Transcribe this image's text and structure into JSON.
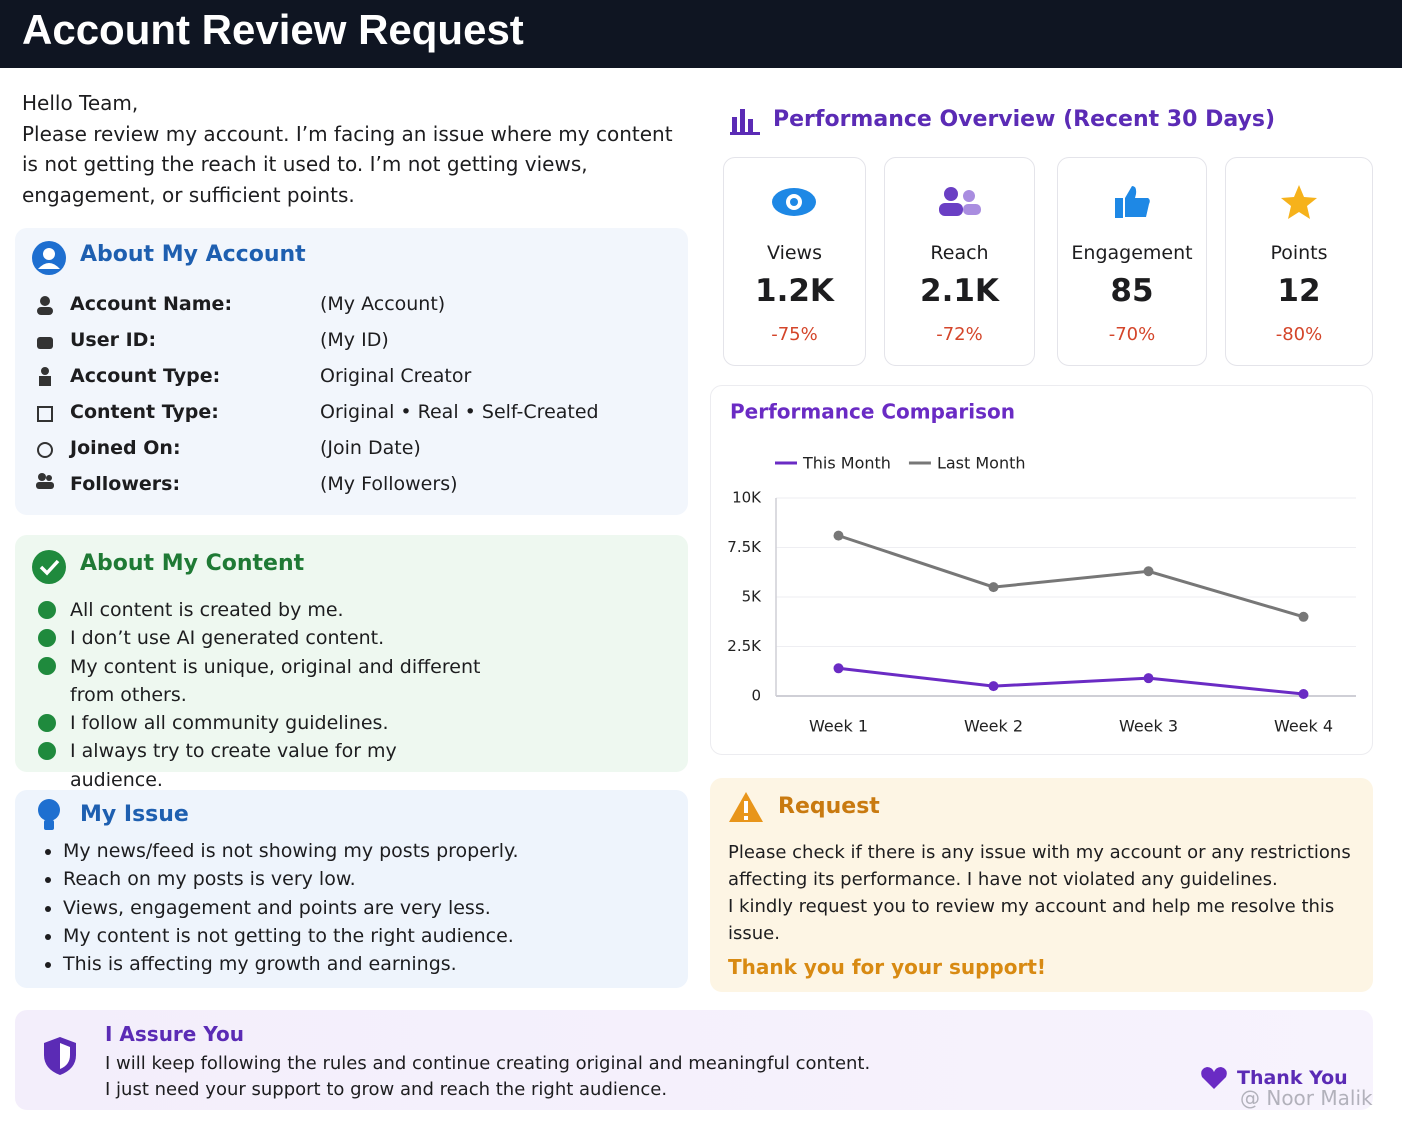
{
  "header": {
    "title": "Account Review Request"
  },
  "intro": {
    "greeting": "Hello Team,",
    "body": "Please review my account. I’m facing an issue where my content is not getting the reach it used to. I’m not getting views, engagement, or sufficient points."
  },
  "account": {
    "title": "About My Account",
    "rows": [
      {
        "label": "Account Name:",
        "value": "(My Account)"
      },
      {
        "label": "User ID:",
        "value": "(My ID)"
      },
      {
        "label": "Account Type:",
        "value": "Original Creator"
      },
      {
        "label": "Content Type:",
        "value": "Original • Real • Self-Created"
      },
      {
        "label": "Joined On:",
        "value": "(Join Date)"
      },
      {
        "label": "Followers:",
        "value": "(My Followers)"
      }
    ]
  },
  "content": {
    "title": "About My Content",
    "items": [
      "All content is created by me.",
      "I don’t use AI generated content.",
      "My content is unique, original and different from others.",
      "I follow all community guidelines.",
      "I always try to create value for my audience."
    ]
  },
  "issue": {
    "title": "My Issue",
    "items": [
      "My news/feed is not showing my posts properly.",
      "Reach on my posts is very low.",
      "Views, engagement and points are very less.",
      "My content is not getting to the right audience.",
      "This is affecting my growth and earnings."
    ]
  },
  "performance": {
    "title": "Performance Overview (Recent 30 Days)",
    "metrics": [
      {
        "label": "Views",
        "value": "1.2K",
        "change": "-75%"
      },
      {
        "label": "Reach",
        "value": "2.1K",
        "change": "-72%"
      },
      {
        "label": "Engagement",
        "value": "85",
        "change": "-70%"
      },
      {
        "label": "Points",
        "value": "12",
        "change": "-80%"
      }
    ]
  },
  "chart_data": {
    "type": "line",
    "title": "Performance Comparison",
    "categories": [
      "Week 1",
      "Week 2",
      "Week 3",
      "Week 4"
    ],
    "series": [
      {
        "name": "This Month",
        "color": "#6a2bc4",
        "values": [
          1400,
          500,
          900,
          100
        ]
      },
      {
        "name": "Last Month",
        "color": "#777777",
        "values": [
          8100,
          5500,
          6300,
          4000
        ]
      }
    ],
    "ylim": [
      0,
      10000
    ],
    "yticks": [
      0,
      {
        "value": 2500,
        "label": "2.5K"
      },
      {
        "value": 5000,
        "label": "5K"
      },
      {
        "value": 7500,
        "label": "7.5K"
      },
      {
        "value": 10000,
        "label": "10K"
      }
    ],
    "grid": true
  },
  "request": {
    "title": "Request",
    "paragraphs": [
      "Please check if there is any issue with my account or any restrictions affecting its performance. I have not violated any guidelines.",
      "I kindly request you to review my account and help me resolve this issue."
    ],
    "thanks": "Thank you for your support!"
  },
  "assure": {
    "title": "I Assure You",
    "lines": [
      "I will keep following the rules and continue creating original and meaningful content.",
      "I just need your support to grow and reach the right audience."
    ]
  },
  "footer": {
    "thanks": "Thank You",
    "watermark": "@ Noor Malik"
  }
}
